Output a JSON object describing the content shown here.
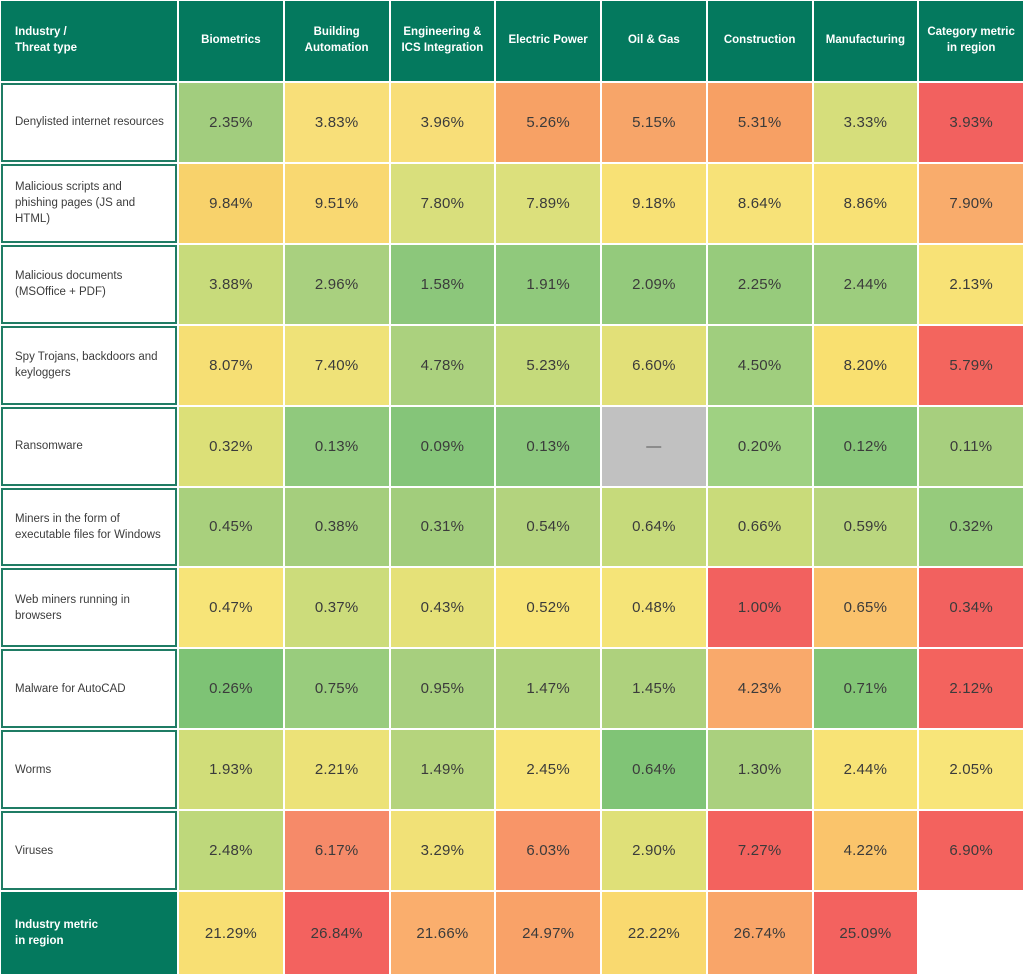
{
  "chart_data": {
    "type": "heatmap",
    "corner_label": "Industry /\nThreat type",
    "value_unit": "%",
    "columns": [
      "Biometrics",
      "Building Automation",
      "Engineering & ICS Integration",
      "Electric Power",
      "Oil & Gas",
      "Construction",
      "Manufacturing",
      "Category metric in region"
    ],
    "rows": [
      {
        "label": "Denylisted internet resources",
        "values": [
          "2.35%",
          "3.83%",
          "3.96%",
          "5.26%",
          "5.15%",
          "5.31%",
          "3.33%",
          "3.93%"
        ],
        "colors": [
          "#A2CD7E",
          "#F8DF79",
          "#F8DE78",
          "#F7A165",
          "#F7A569",
          "#F7A064",
          "#D6DE7B",
          "#F2615F"
        ]
      },
      {
        "label": "Malicious scripts and phishing pages (JS and HTML)",
        "values": [
          "9.84%",
          "9.51%",
          "7.80%",
          "7.89%",
          "9.18%",
          "8.64%",
          "8.86%",
          "7.90%"
        ],
        "colors": [
          "#F8D26B",
          "#F9D871",
          "#D9DF7C",
          "#DCE07C",
          "#F8E175",
          "#F7E278",
          "#F8E175",
          "#F9AC6C"
        ]
      },
      {
        "label": "Malicious documents (MSOffice + PDF)",
        "values": [
          "3.88%",
          "2.96%",
          "1.58%",
          "1.91%",
          "2.09%",
          "2.25%",
          "2.44%",
          "2.13%"
        ],
        "colors": [
          "#C8DB7B",
          "#A9D07F",
          "#8CC77B",
          "#90C97C",
          "#94CA7C",
          "#97CB7C",
          "#9DCD7E",
          "#F8E276"
        ]
      },
      {
        "label": "Spy Trojans, backdoors and keyloggers",
        "values": [
          "8.07%",
          "7.40%",
          "4.78%",
          "5.23%",
          "6.60%",
          "4.50%",
          "8.20%",
          "5.79%"
        ],
        "colors": [
          "#F6DF74",
          "#EFE278",
          "#ABD17E",
          "#C5DA7B",
          "#E2E078",
          "#A0CE7E",
          "#F9E070",
          "#F3655E"
        ]
      },
      {
        "label": "Ransomware",
        "values": [
          "0.32%",
          "0.13%",
          "0.09%",
          "0.13%",
          "—",
          "0.20%",
          "0.12%",
          "0.11%"
        ],
        "colors": [
          "#DCE078",
          "#90C97D",
          "#85C579",
          "#8BC77D",
          "#C1C1C1",
          "#9FD182",
          "#89C77A",
          "#A7CF7E"
        ]
      },
      {
        "label": "Miners in the form of executable files for Windows",
        "values": [
          "0.45%",
          "0.38%",
          "0.31%",
          "0.54%",
          "0.64%",
          "0.66%",
          "0.59%",
          "0.32%"
        ],
        "colors": [
          "#A9D07D",
          "#A5CE7D",
          "#A2CD7C",
          "#B3D37E",
          "#C6DA7B",
          "#C9DB7A",
          "#BAD67E",
          "#96CB7C"
        ]
      },
      {
        "label": "Web miners running in browsers",
        "values": [
          "0.47%",
          "0.37%",
          "0.43%",
          "0.52%",
          "0.48%",
          "1.00%",
          "0.65%",
          "0.34%"
        ],
        "colors": [
          "#F7E478",
          "#CCDC7B",
          "#E5E178",
          "#F8E477",
          "#F5E478",
          "#F2615F",
          "#FAC26C",
          "#F2615F"
        ]
      },
      {
        "label": "Malware for AutoCAD",
        "values": [
          "0.26%",
          "0.75%",
          "0.95%",
          "1.47%",
          "1.45%",
          "4.23%",
          "0.71%",
          "2.12%"
        ],
        "colors": [
          "#7EC375",
          "#99CC7D",
          "#A7CF7E",
          "#AFD27D",
          "#AED17D",
          "#F9A96B",
          "#83C576",
          "#F3635E"
        ]
      },
      {
        "label": "Worms",
        "values": [
          "1.93%",
          "2.21%",
          "1.49%",
          "2.45%",
          "0.64%",
          "1.30%",
          "2.44%",
          "2.05%"
        ],
        "colors": [
          "#D1DD79",
          "#ECE278",
          "#B5D47D",
          "#F8E478",
          "#80C476",
          "#AAD07E",
          "#F8E376",
          "#F8E579"
        ]
      },
      {
        "label": "Viruses",
        "values": [
          "2.48%",
          "6.17%",
          "3.29%",
          "6.03%",
          "2.90%",
          "7.27%",
          "4.22%",
          "6.90%"
        ],
        "colors": [
          "#BED87B",
          "#F68A69",
          "#F1E177",
          "#F89568",
          "#DFE078",
          "#F3625E",
          "#FAC46B",
          "#F3625E"
        ]
      }
    ],
    "footer_row": {
      "label": "Industry metric\nin region",
      "values": [
        "21.29%",
        "26.84%",
        "21.66%",
        "24.97%",
        "22.22%",
        "26.74%",
        "25.09%",
        ""
      ],
      "colors": [
        "#F8DF73",
        "#F3625F",
        "#FAAE6D",
        "#F9A268",
        "#F9D96F",
        "#F9A569",
        "#F3625F",
        "#FFFFFF"
      ]
    },
    "palette": {
      "header_bg": "#04795E",
      "label_border": "#1F7C64",
      "value_text": "#3B3B3B",
      "no_data_bg": "#C1C1C1",
      "grid_gap": "#FFFFFF"
    },
    "no_data_symbol": "—",
    "layout": {
      "grid": "12 rows x 9 cols",
      "legend": "none",
      "gradient": "green-yellow-orange-red by value"
    }
  }
}
